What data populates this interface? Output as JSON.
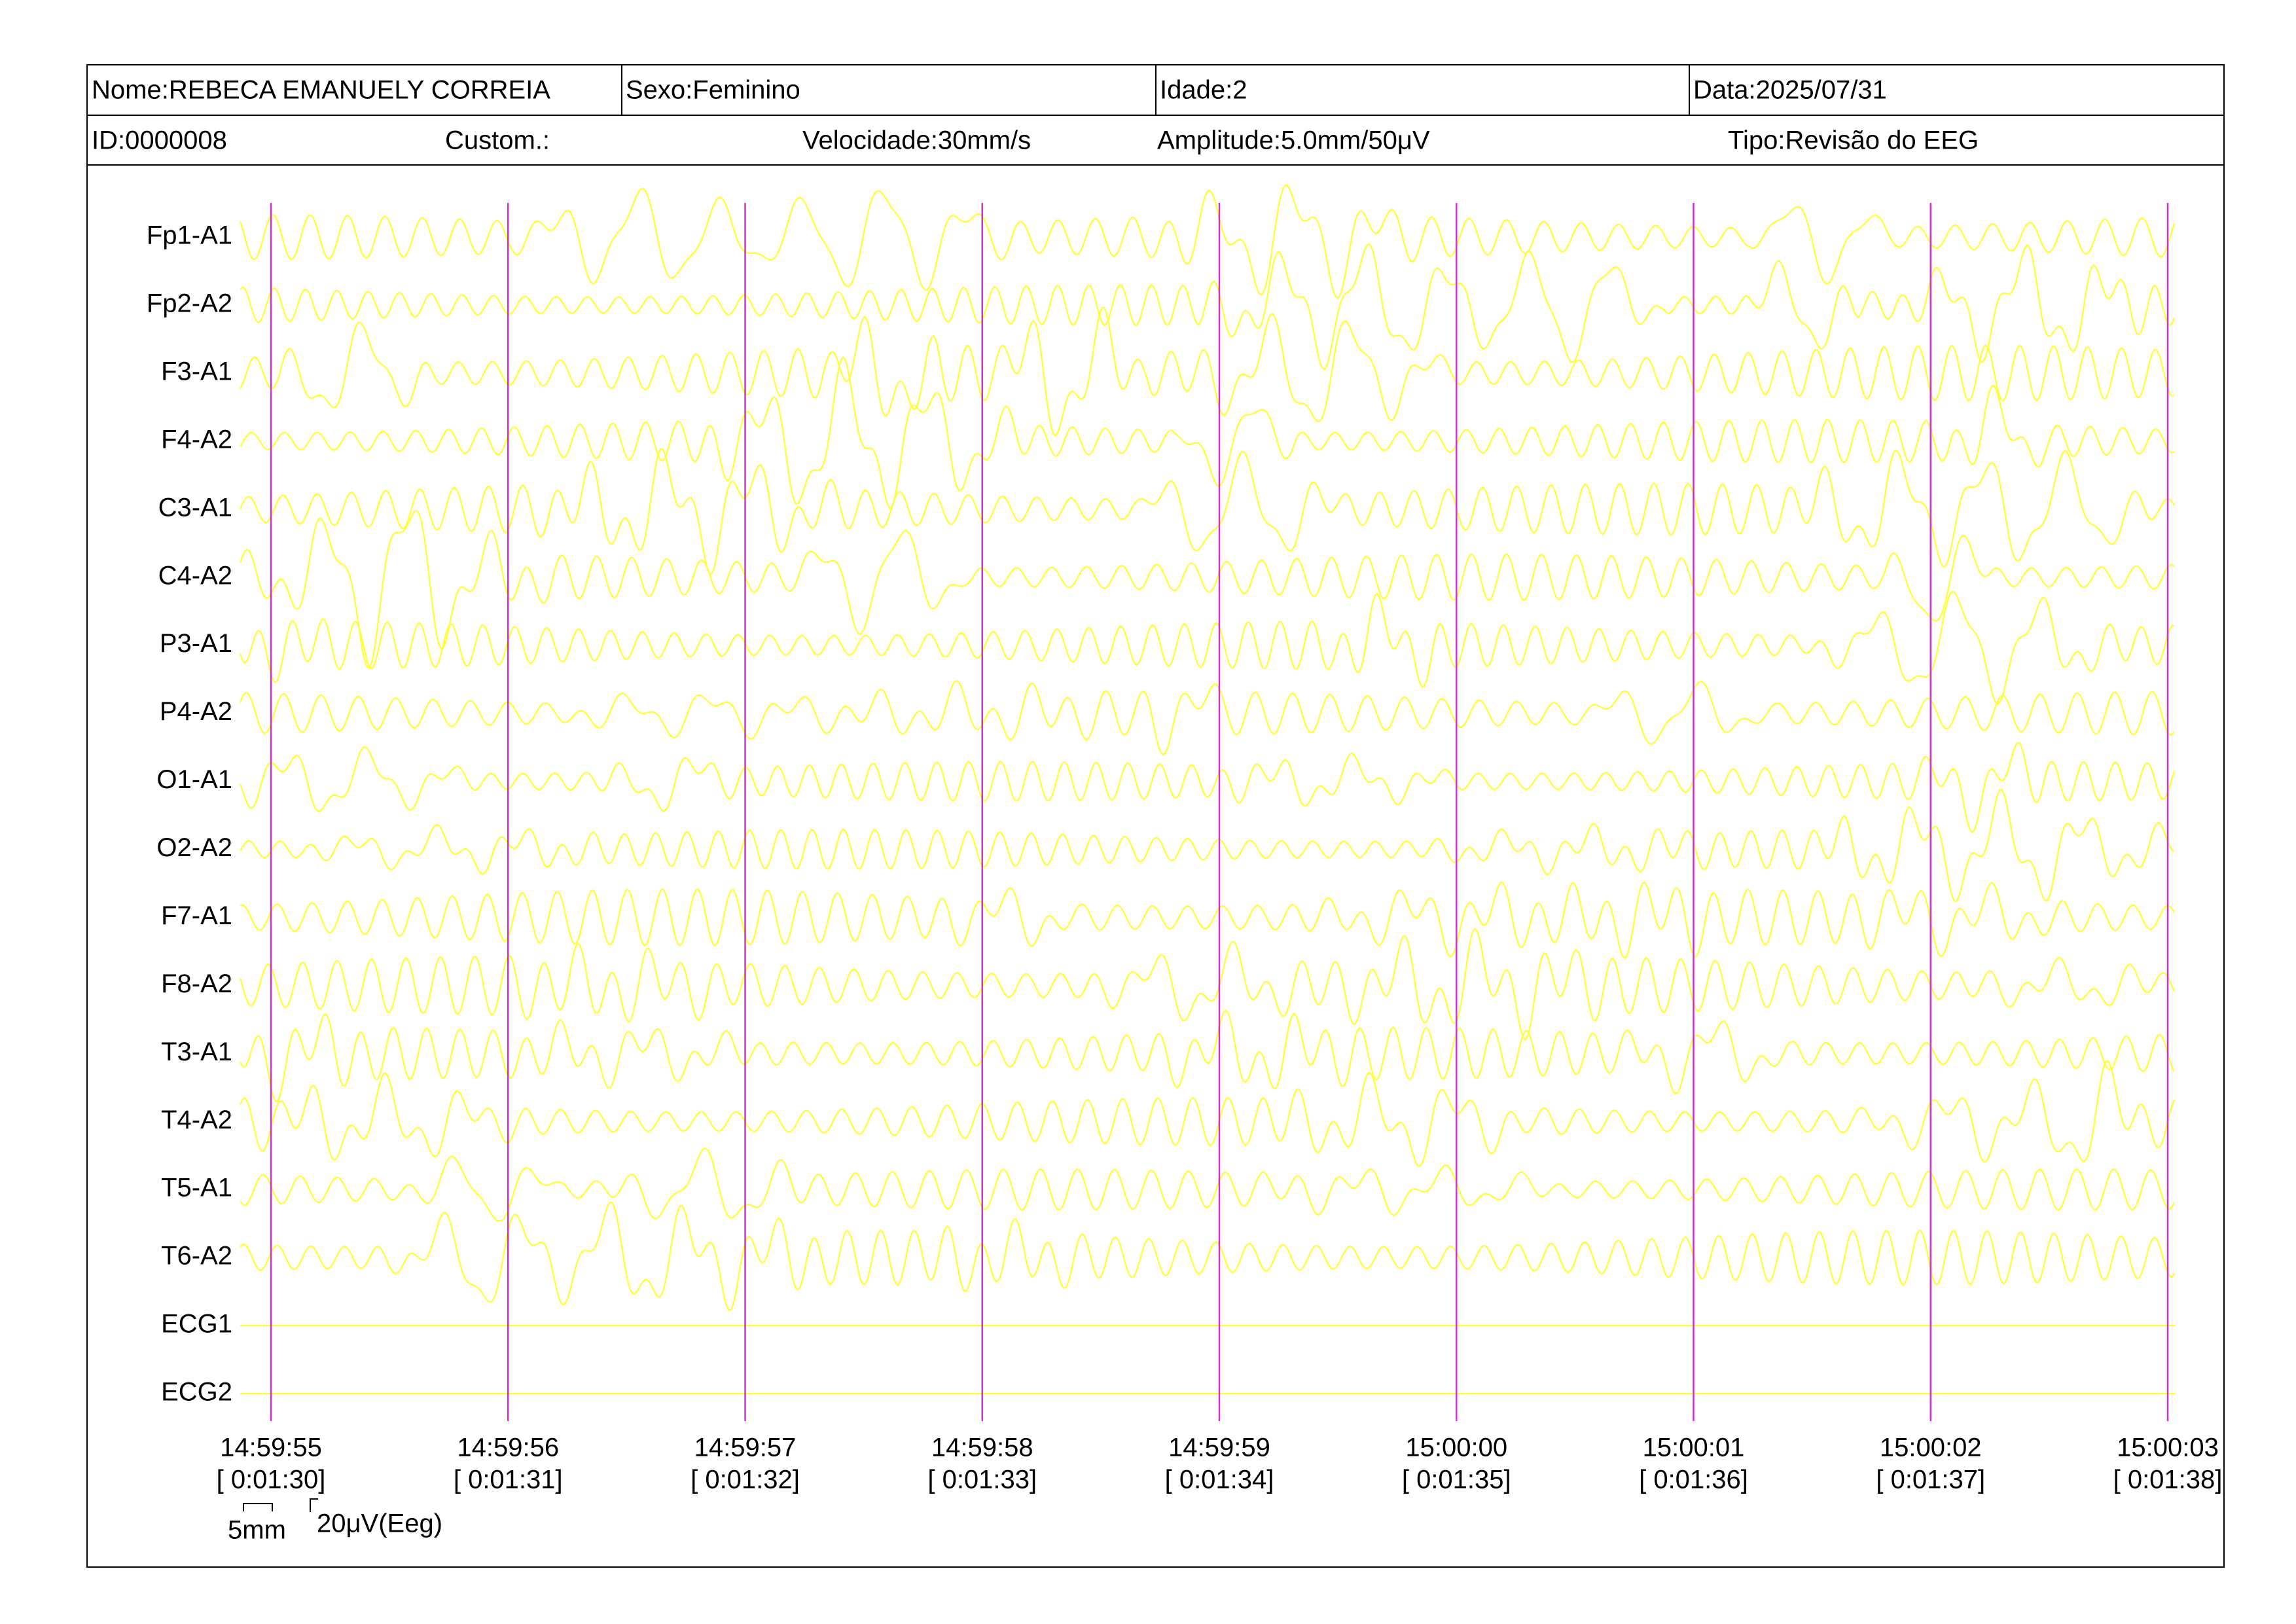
{
  "header": {
    "name": "Nome:REBECA EMANUELY CORREIA",
    "sex": "Sexo:Feminino",
    "age": "Idade:2",
    "date": "Data:2025/07/31",
    "id": "ID:0000008",
    "custom": "Custom.:",
    "speed": "Velocidade:30mm/s",
    "amplitude": "Amplitude:5.0mm/50μV",
    "type": "Tipo:Revisão do EEG"
  },
  "channels": [
    "Fp1-A1",
    "Fp2-A2",
    "F3-A1",
    "F4-A2",
    "C3-A1",
    "C4-A2",
    "P3-A1",
    "P4-A2",
    "O1-A1",
    "O2-A2",
    "F7-A1",
    "F8-A2",
    "T3-A1",
    "T4-A2",
    "T5-A1",
    "T6-A2",
    "ECG1",
    "ECG2"
  ],
  "time_marks": [
    {
      "clock": "14:59:55",
      "elapsed": "[ 0:01:30]"
    },
    {
      "clock": "14:59:56",
      "elapsed": "[ 0:01:31]"
    },
    {
      "clock": "14:59:57",
      "elapsed": "[ 0:01:32]"
    },
    {
      "clock": "14:59:58",
      "elapsed": "[ 0:01:33]"
    },
    {
      "clock": "14:59:59",
      "elapsed": "[ 0:01:34]"
    },
    {
      "clock": "15:00:00",
      "elapsed": "[ 0:01:35]"
    },
    {
      "clock": "15:00:01",
      "elapsed": "[ 0:01:36]"
    },
    {
      "clock": "15:00:02",
      "elapsed": "[ 0:01:37]"
    },
    {
      "clock": "15:00:03",
      "elapsed": "[ 0:01:38]"
    }
  ],
  "scale": {
    "width": "5mm",
    "height": "20μV(Eeg)"
  }
}
